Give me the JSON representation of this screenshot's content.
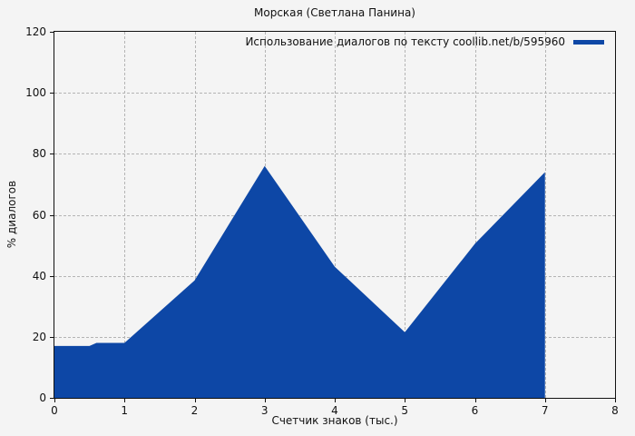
{
  "title": "Морская (Светлана Панина)",
  "legend": {
    "label": "Использование диалогов по тексту coollib.net/b/595960"
  },
  "axes": {
    "xlabel": "Счетчик знаков (тыс.)",
    "ylabel": "% диалогов"
  },
  "colors": {
    "series_fill": "#0d47a6",
    "background": "#f4f4f4",
    "grid": "#b4b4b4",
    "axis": "#111111"
  },
  "chart_data": {
    "type": "area",
    "title": "Морская (Светлана Панина)",
    "xlabel": "Счетчик знаков (тыс.)",
    "ylabel": "% диалогов",
    "series": [
      {
        "name": "Использование диалогов по тексту coollib.net/b/595960",
        "x": [
          0,
          0.5,
          0.6,
          1,
          2,
          3,
          4,
          5,
          6,
          7
        ],
        "y": [
          17,
          17,
          18,
          18,
          38.5,
          76,
          43,
          21.5,
          50.5,
          74
        ],
        "fill_color": "#0d47a6"
      }
    ],
    "xlim": [
      0,
      8
    ],
    "ylim": [
      0,
      120
    ],
    "xticks": [
      0,
      1,
      2,
      3,
      4,
      5,
      6,
      7,
      8
    ],
    "yticks": [
      0,
      20,
      40,
      60,
      80,
      100,
      120
    ],
    "grid": true,
    "grid_style": "dashed",
    "legend_position": "top-right"
  }
}
